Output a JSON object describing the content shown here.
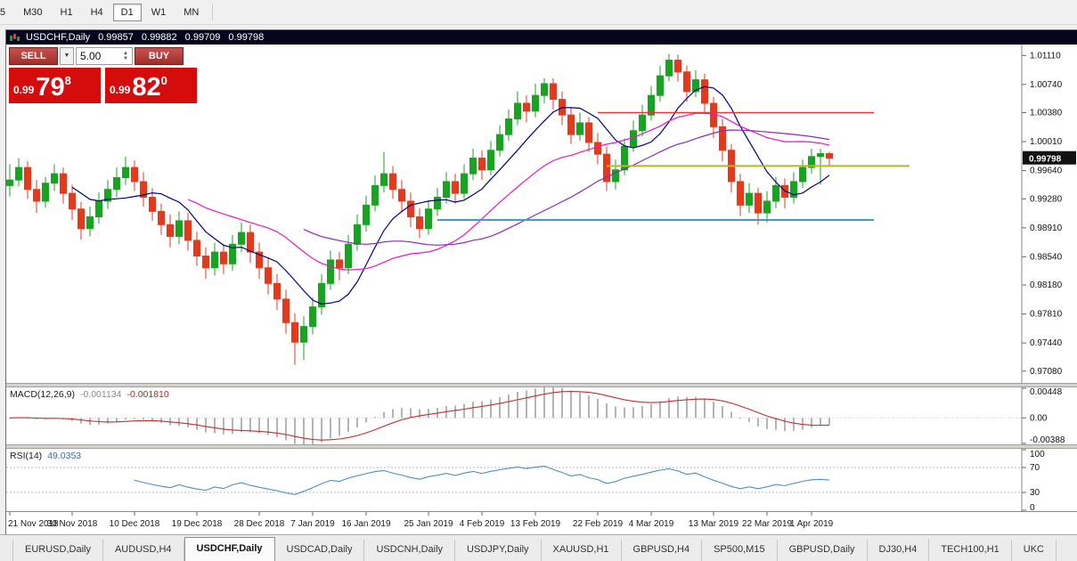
{
  "toolbar": {
    "timeframes": [
      {
        "label": "5",
        "active": false
      },
      {
        "label": "M30",
        "active": false
      },
      {
        "label": "H1",
        "active": false
      },
      {
        "label": "H4",
        "active": false
      },
      {
        "label": "D1",
        "active": true
      },
      {
        "label": "W1",
        "active": false
      },
      {
        "label": "MN",
        "active": false
      }
    ]
  },
  "chart_header": {
    "symbol": "USDCHF,Daily",
    "open": "0.99857",
    "high": "0.99882",
    "low": "0.99709",
    "close": "0.99798"
  },
  "trade_panel": {
    "sell_label": "SELL",
    "buy_label": "BUY",
    "volume": "5.00",
    "sell_price": {
      "prefix": "0.99",
      "big": "79",
      "sup": "8"
    },
    "buy_price": {
      "prefix": "0.99",
      "big": "82",
      "sup": "0"
    }
  },
  "indicators": {
    "macd": {
      "label": "MACD(12,26,9)",
      "value_main": "-0.001134",
      "value_signal": "-0.001810",
      "scale": [
        "0.00448",
        "0.00",
        "-0.00388"
      ]
    },
    "rsi": {
      "label": "RSI(14)",
      "value": "49.0353",
      "scale": [
        "100",
        "70",
        "30",
        "0"
      ],
      "levels": [
        70,
        30
      ]
    }
  },
  "price_axis": {
    "labels": [
      "1.01110",
      "1.00740",
      "1.00380",
      "1.00010",
      "0.99640",
      "0.99280",
      "0.98910",
      "0.98540",
      "0.98180",
      "0.97810",
      "0.97440",
      "0.97080"
    ],
    "current": "0.99798"
  },
  "time_axis": {
    "labels": [
      {
        "text": "21 Nov 2018",
        "bar": 0
      },
      {
        "text": "30 Nov 2018",
        "bar": 7
      },
      {
        "text": "10 Dec 2018",
        "bar": 14
      },
      {
        "text": "19 Dec 2018",
        "bar": 21
      },
      {
        "text": "28 Dec 2018",
        "bar": 28
      },
      {
        "text": "7 Jan 2019",
        "bar": 34
      },
      {
        "text": "16 Jan 2019",
        "bar": 40
      },
      {
        "text": "25 Jan 2019",
        "bar": 47
      },
      {
        "text": "4 Feb 2019",
        "bar": 53
      },
      {
        "text": "13 Feb 2019",
        "bar": 59
      },
      {
        "text": "22 Feb 2019",
        "bar": 66
      },
      {
        "text": "4 Mar 2019",
        "bar": 72
      },
      {
        "text": "13 Mar 2019",
        "bar": 79
      },
      {
        "text": "22 Mar 2019",
        "bar": 85
      },
      {
        "text": "1 Apr 2019",
        "bar": 90
      }
    ]
  },
  "tabs": {
    "active_index": 2,
    "items": [
      {
        "label": "EURUSD,Daily"
      },
      {
        "label": "AUDUSD,H4"
      },
      {
        "label": "USDCHF,Daily"
      },
      {
        "label": "USDCAD,Daily"
      },
      {
        "label": "USDCNH,Daily"
      },
      {
        "label": "USDJPY,Daily"
      },
      {
        "label": "XAUUSD,H1"
      },
      {
        "label": "GBPUSD,H4"
      },
      {
        "label": "SP500,M15"
      },
      {
        "label": "GBPUSD,Daily"
      },
      {
        "label": "DJ30,H4"
      },
      {
        "label": "TECH100,H1"
      },
      {
        "label": "UKC"
      }
    ]
  },
  "chart_data": {
    "type": "candlestick",
    "symbol": "USDCHF",
    "timeframe": "Daily",
    "price_range": [
      0.9693,
      1.0125
    ],
    "colors": {
      "up": "#18a321",
      "down": "#e33a1e",
      "macd_hist": "#b4b4b4",
      "macd_signal": "#c03030",
      "rsi_line": "#4a8fc7"
    },
    "moving_averages": [
      {
        "period": 8,
        "color": "#000080"
      },
      {
        "period": 21,
        "color": "#e619c3"
      },
      {
        "period": 34,
        "color": "#8a2bb8"
      }
    ],
    "hlines": [
      {
        "price": 1.0038,
        "color": "#e03a3a",
        "from_bar": 66,
        "to_bar": 97,
        "width": 1.5
      },
      {
        "price": 0.997,
        "color": "#b5b81e",
        "from_bar": 67,
        "to_bar": 101,
        "width": 2
      },
      {
        "price": 0.9901,
        "color": "#3e9bd0",
        "from_bar": 48,
        "to_bar": 97,
        "width": 2
      }
    ],
    "candles": [
      [
        0.9945,
        0.9972,
        0.9931,
        0.9952
      ],
      [
        0.9952,
        0.998,
        0.9944,
        0.9968
      ],
      [
        0.9968,
        0.9976,
        0.9928,
        0.994
      ],
      [
        0.994,
        0.9952,
        0.991,
        0.9925
      ],
      [
        0.9925,
        0.9956,
        0.9917,
        0.9948
      ],
      [
        0.9948,
        0.9972,
        0.9938,
        0.996
      ],
      [
        0.996,
        0.9968,
        0.9922,
        0.9935
      ],
      [
        0.9935,
        0.9946,
        0.9901,
        0.9915
      ],
      [
        0.9915,
        0.9924,
        0.9876,
        0.989
      ],
      [
        0.989,
        0.9918,
        0.988,
        0.9905
      ],
      [
        0.9905,
        0.9936,
        0.9896,
        0.9925
      ],
      [
        0.9925,
        0.9952,
        0.9915,
        0.994
      ],
      [
        0.994,
        0.9968,
        0.993,
        0.9955
      ],
      [
        0.9955,
        0.9982,
        0.9946,
        0.9968
      ],
      [
        0.9968,
        0.9977,
        0.9938,
        0.995
      ],
      [
        0.995,
        0.9962,
        0.9918,
        0.993
      ],
      [
        0.993,
        0.9942,
        0.99,
        0.9912
      ],
      [
        0.9912,
        0.9922,
        0.9882,
        0.9895
      ],
      [
        0.9895,
        0.9908,
        0.9866,
        0.988
      ],
      [
        0.988,
        0.9912,
        0.987,
        0.99
      ],
      [
        0.99,
        0.991,
        0.9862,
        0.9875
      ],
      [
        0.9875,
        0.9886,
        0.9842,
        0.9855
      ],
      [
        0.9855,
        0.9866,
        0.9826,
        0.984
      ],
      [
        0.984,
        0.9872,
        0.983,
        0.986
      ],
      [
        0.986,
        0.987,
        0.9832,
        0.9845
      ],
      [
        0.9845,
        0.9882,
        0.9836,
        0.987
      ],
      [
        0.987,
        0.9898,
        0.986,
        0.9885
      ],
      [
        0.9885,
        0.9895,
        0.9846,
        0.986
      ],
      [
        0.986,
        0.9872,
        0.9826,
        0.984
      ],
      [
        0.984,
        0.9852,
        0.9806,
        0.982
      ],
      [
        0.982,
        0.9832,
        0.9786,
        0.98
      ],
      [
        0.98,
        0.9812,
        0.9756,
        0.977
      ],
      [
        0.977,
        0.9782,
        0.9716,
        0.9745
      ],
      [
        0.9745,
        0.9778,
        0.9722,
        0.9765
      ],
      [
        0.9765,
        0.9802,
        0.9755,
        0.979
      ],
      [
        0.979,
        0.9832,
        0.978,
        0.982
      ],
      [
        0.982,
        0.9862,
        0.9812,
        0.985
      ],
      [
        0.985,
        0.986,
        0.9824,
        0.984
      ],
      [
        0.984,
        0.9882,
        0.9832,
        0.987
      ],
      [
        0.987,
        0.9908,
        0.9862,
        0.9895
      ],
      [
        0.9895,
        0.9932,
        0.9886,
        0.992
      ],
      [
        0.992,
        0.9958,
        0.9912,
        0.9945
      ],
      [
        0.9945,
        0.9988,
        0.9936,
        0.996
      ],
      [
        0.996,
        0.997,
        0.9928,
        0.994
      ],
      [
        0.994,
        0.9952,
        0.9912,
        0.9925
      ],
      [
        0.9925,
        0.9936,
        0.9892,
        0.9905
      ],
      [
        0.9905,
        0.9916,
        0.9878,
        0.989
      ],
      [
        0.989,
        0.9926,
        0.9882,
        0.9915
      ],
      [
        0.9915,
        0.9942,
        0.9906,
        0.993
      ],
      [
        0.993,
        0.9962,
        0.9922,
        0.995
      ],
      [
        0.995,
        0.996,
        0.9922,
        0.9935
      ],
      [
        0.9935,
        0.9972,
        0.9928,
        0.996
      ],
      [
        0.996,
        0.9992,
        0.9952,
        0.998
      ],
      [
        0.998,
        0.999,
        0.9952,
        0.9965
      ],
      [
        0.9965,
        1.0002,
        0.9958,
        0.999
      ],
      [
        0.999,
        1.0022,
        0.9982,
        1.001
      ],
      [
        1.001,
        1.0042,
        1.0002,
        1.003
      ],
      [
        1.003,
        1.0065,
        1.0022,
        1.005
      ],
      [
        1.005,
        1.006,
        1.0026,
        1.004
      ],
      [
        1.004,
        1.0075,
        1.0032,
        1.006
      ],
      [
        1.006,
        1.0082,
        1.005,
        1.0075
      ],
      [
        1.0075,
        1.0082,
        1.0042,
        1.0055
      ],
      [
        1.0055,
        1.0065,
        1.0022,
        1.0035
      ],
      [
        1.0035,
        1.0045,
        0.9998,
        1.001
      ],
      [
        1.001,
        1.0038,
        1.0002,
        1.0025
      ],
      [
        1.0025,
        1.0032,
        0.9988,
        1.0
      ],
      [
        1.0,
        1.0012,
        0.9972,
        0.9985
      ],
      [
        0.9985,
        0.9995,
        0.9938,
        0.995
      ],
      [
        0.995,
        0.9978,
        0.994,
        0.9965
      ],
      [
        0.9965,
        1.0005,
        0.9958,
        0.9995
      ],
      [
        0.9995,
        1.0028,
        0.9988,
        1.0015
      ],
      [
        1.0015,
        1.0048,
        1.0008,
        1.0035
      ],
      [
        1.0035,
        1.0072,
        1.0028,
        1.006
      ],
      [
        1.006,
        1.0098,
        1.0052,
        1.0085
      ],
      [
        1.0085,
        1.0113,
        1.0078,
        1.0105
      ],
      [
        1.0105,
        1.0112,
        1.0078,
        1.009
      ],
      [
        1.009,
        1.0098,
        1.0052,
        1.0065
      ],
      [
        1.0065,
        1.0092,
        1.0058,
        1.008
      ],
      [
        1.008,
        1.0088,
        1.0038,
        1.005
      ],
      [
        1.005,
        1.0058,
        1.0006,
        1.002
      ],
      [
        1.002,
        1.003,
        0.9976,
        0.999
      ],
      [
        0.999,
        0.9998,
        0.9936,
        0.995
      ],
      [
        0.995,
        0.996,
        0.9906,
        0.992
      ],
      [
        0.992,
        0.9948,
        0.991,
        0.9935
      ],
      [
        0.9935,
        0.9942,
        0.9895,
        0.991
      ],
      [
        0.991,
        0.9938,
        0.9898,
        0.9925
      ],
      [
        0.9925,
        0.9956,
        0.9916,
        0.9945
      ],
      [
        0.9945,
        0.9954,
        0.9916,
        0.993
      ],
      [
        0.993,
        0.9962,
        0.9922,
        0.995
      ],
      [
        0.995,
        0.9978,
        0.9942,
        0.9968
      ],
      [
        0.9968,
        0.9992,
        0.996,
        0.9982
      ],
      [
        0.9982,
        0.9992,
        0.9946,
        0.99857
      ],
      [
        0.99857,
        0.99882,
        0.99709,
        0.99798
      ]
    ]
  }
}
